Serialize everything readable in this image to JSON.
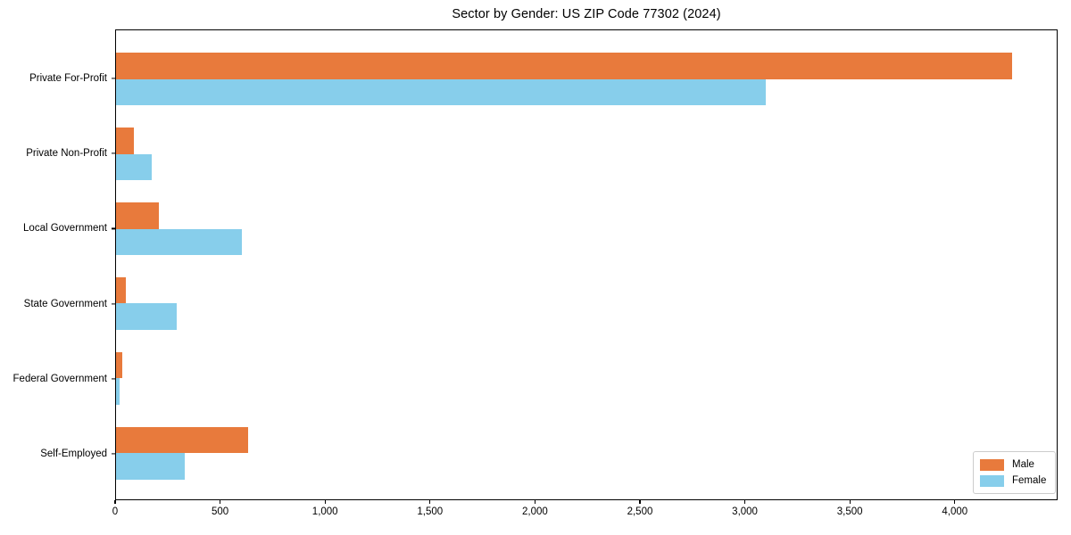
{
  "figure": {
    "title": "Sector by Gender: US ZIP Code 77302 (2024)"
  },
  "chart_data": {
    "type": "bar",
    "orientation": "horizontal",
    "title": "Sector by Gender: US ZIP Code 77302 (2024)",
    "xlabel": "",
    "ylabel": "",
    "categories": [
      "Private For-Profit",
      "Private Non-Profit",
      "Local Government",
      "State Government",
      "Federal Government",
      "Self-Employed"
    ],
    "series": [
      {
        "name": "Male",
        "color": "#e87a3c",
        "values": [
          4275,
          85,
          205,
          45,
          30,
          630
        ]
      },
      {
        "name": "Female",
        "color": "#87ceeb",
        "values": [
          3100,
          170,
          600,
          290,
          15,
          330
        ]
      }
    ],
    "xlim": [
      0,
      4490
    ],
    "xticks": [
      0,
      500,
      1000,
      1500,
      2000,
      2500,
      3000,
      3500,
      4000
    ],
    "xtick_labels": [
      "0",
      "500",
      "1,000",
      "1,500",
      "2,000",
      "2,500",
      "3,000",
      "3,500",
      "4,000"
    ],
    "grid": false,
    "legend_position": "lower right",
    "plot_border_color": "#000000",
    "background_color": "#ffffff"
  }
}
